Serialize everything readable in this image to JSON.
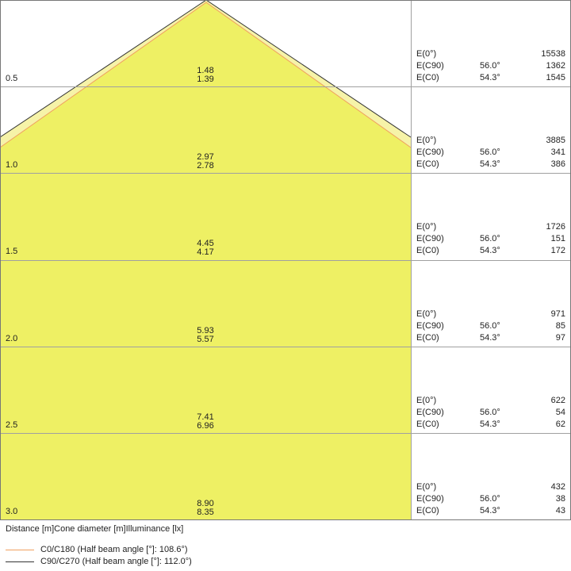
{
  "colors": {
    "fill": "#eef064",
    "fill_light": "#f6f3a8",
    "c0_line": "#f0a060",
    "c90_line": "#333333",
    "grid": "#a0a0a0"
  },
  "rows": [
    {
      "distance": "0.5",
      "d1": "1.48",
      "d2": "1.39",
      "e0": "15538",
      "ec90_angle": "56.0°",
      "ec90": "1362",
      "ec0_angle": "54.3°",
      "ec0": "1545"
    },
    {
      "distance": "1.0",
      "d1": "2.97",
      "d2": "2.78",
      "e0": "3885",
      "ec90_angle": "56.0°",
      "ec90": "341",
      "ec0_angle": "54.3°",
      "ec0": "386"
    },
    {
      "distance": "1.5",
      "d1": "4.45",
      "d2": "4.17",
      "e0": "1726",
      "ec90_angle": "56.0°",
      "ec90": "151",
      "ec0_angle": "54.3°",
      "ec0": "172"
    },
    {
      "distance": "2.0",
      "d1": "5.93",
      "d2": "5.57",
      "e0": "971",
      "ec90_angle": "56.0°",
      "ec90": "85",
      "ec0_angle": "54.3°",
      "ec0": "97"
    },
    {
      "distance": "2.5",
      "d1": "7.41",
      "d2": "6.96",
      "e0": "622",
      "ec90_angle": "56.0°",
      "ec90": "54",
      "ec0_angle": "54.3°",
      "ec0": "62"
    },
    {
      "distance": "3.0",
      "d1": "8.90",
      "d2": "8.35",
      "e0": "432",
      "ec90_angle": "56.0°",
      "ec90": "38",
      "ec0_angle": "54.3°",
      "ec0": "43"
    }
  ],
  "labels": {
    "e0": "E(0°)",
    "ec90": "E(C90)",
    "ec0": "E(C0)"
  },
  "caption": "Distance [m]Cone diameter [m]Illuminance [lx]",
  "legend": [
    {
      "label": "C0/C180 (Half beam angle [°]: 108.6°)",
      "color": "#f0a060"
    },
    {
      "label": "C90/C270 (Half beam angle [°]: 112.0°)",
      "color": "#333333"
    }
  ]
}
